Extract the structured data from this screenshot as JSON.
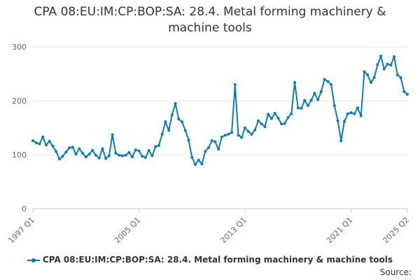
{
  "chart_data": {
    "type": "line",
    "title": "CPA 08:EU:IM:CP:BOP:SA: 28.4. Metal forming machinery & machine tools",
    "title_line1": "CPA 08:EU:IM:CP:BOP:SA: 28.4. Metal forming machinery &",
    "title_line2": "machine tools",
    "ylim": [
      0,
      300
    ],
    "yticks": [
      0,
      100,
      200,
      300
    ],
    "xticks": [
      "1997 Q1",
      "2005 Q1",
      "2013 Q1",
      "2021 Q1",
      "2025 Q2"
    ],
    "grid": "horizontal",
    "legend_position": "bottom",
    "x_start": "1997 Q1",
    "x_end": "2025 Q2",
    "series": [
      {
        "name": "CPA 08:EU:IM:CP:BOP:SA: 28.4. Metal forming machinery & machine tools",
        "color": "#0b7cb7",
        "values": [
          126,
          122,
          120,
          133,
          118,
          125,
          116,
          106,
          92,
          97,
          105,
          113,
          114,
          101,
          111,
          103,
          96,
          101,
          108,
          99,
          94,
          111,
          93,
          98,
          137,
          103,
          99,
          98,
          99,
          104,
          96,
          109,
          107,
          97,
          95,
          108,
          98,
          115,
          117,
          138,
          161,
          145,
          174,
          195,
          166,
          161,
          145,
          127,
          95,
          82,
          90,
          83,
          106,
          113,
          126,
          124,
          110,
          133,
          136,
          138,
          141,
          230,
          136,
          132,
          150,
          143,
          138,
          146,
          163,
          157,
          152,
          175,
          167,
          177,
          168,
          157,
          158,
          169,
          176,
          234,
          187,
          186,
          201,
          191,
          201,
          214,
          202,
          217,
          240,
          236,
          230,
          191,
          163,
          126,
          162,
          176,
          178,
          176,
          187,
          172,
          254,
          248,
          234,
          243,
          267,
          283,
          259,
          268,
          266,
          282,
          248,
          243,
          217,
          212
        ]
      }
    ]
  },
  "legend": {
    "label": "CPA 08:EU:IM:CP:BOP:SA: 28.4. Metal forming machinery & machine tools"
  },
  "source": {
    "label": "Source:"
  }
}
